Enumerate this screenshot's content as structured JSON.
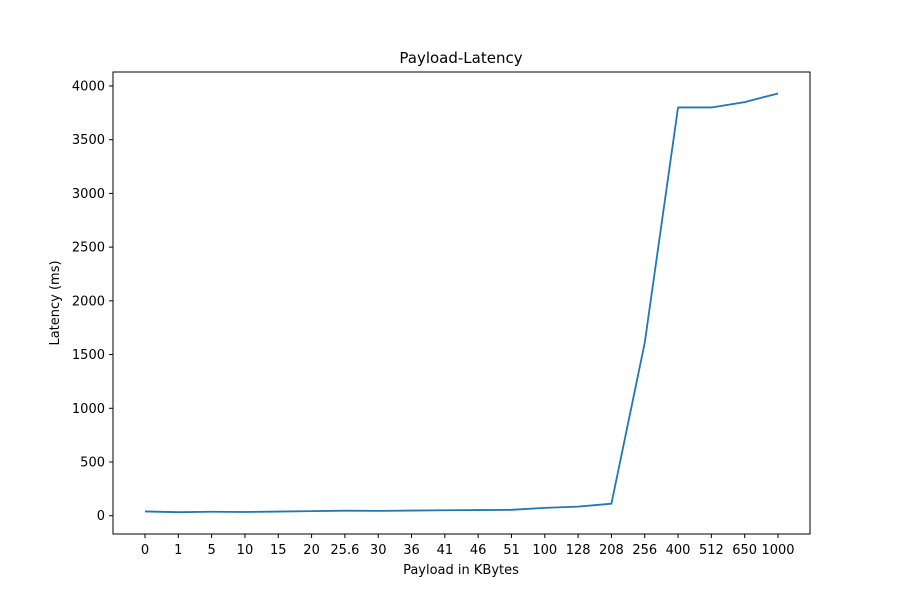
{
  "chart_data": {
    "type": "line",
    "title": "Payload-Latency",
    "xlabel": "Payload in KBytes",
    "ylabel": "Latency (ms)",
    "categories": [
      "0",
      "1",
      "5",
      "10",
      "15",
      "20",
      "25.6",
      "30",
      "36",
      "41",
      "46",
      "51",
      "100",
      "128",
      "208",
      "256",
      "400",
      "512",
      "650",
      "1000"
    ],
    "series": [
      {
        "values": [
          40,
          33,
          37,
          35,
          39,
          43,
          47,
          45,
          48,
          51,
          53,
          55,
          73,
          85,
          112,
          1610,
          3800,
          3800,
          3850,
          3930
        ],
        "color": "#1f77b4"
      }
    ],
    "yticks": [
      0,
      500,
      1000,
      1500,
      2000,
      2500,
      3000,
      3500,
      4000
    ],
    "ylim": [
      -170,
      4130
    ],
    "grid": false,
    "legend": "none"
  }
}
